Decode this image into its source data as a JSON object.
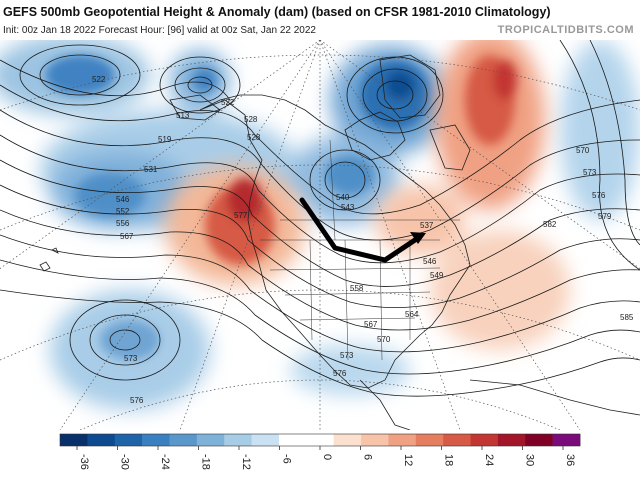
{
  "header": {
    "title": "GEFS 500mb Geopotential Height & Anomaly (dam) (based on CFSR 1981-2010 Climatology)",
    "subtitle": "Init: 00z Jan 18 2022   Forecast Hour: [96]   valid at 00z Sat, Jan 22 2022",
    "site": "TROPICALTIDBITS.COM"
  },
  "colors": {
    "neg": [
      "#08306b",
      "#0d4a8f",
      "#1f63a8",
      "#3a7fbf",
      "#5a98cc",
      "#7fb2d9",
      "#a6cce6",
      "#c9e1f2",
      "#ffffff"
    ],
    "pos": [
      "#ffffff",
      "#fbe0d0",
      "#f7c4aa",
      "#f0a183",
      "#e57d5f",
      "#d65a45",
      "#c23633",
      "#a3152a",
      "#800026",
      "#7a0b7a"
    ],
    "arrow": "#000000"
  },
  "contour_labels": [
    {
      "id": "c522a",
      "text": "522"
    },
    {
      "id": "c513",
      "text": "513"
    },
    {
      "id": "c519",
      "text": "519"
    },
    {
      "id": "c522b",
      "text": "522"
    },
    {
      "id": "c528a",
      "text": "528"
    },
    {
      "id": "c531",
      "text": "531"
    },
    {
      "id": "c546",
      "text": "546"
    },
    {
      "id": "c552",
      "text": "552"
    },
    {
      "id": "c556",
      "text": "556"
    },
    {
      "id": "c567a",
      "text": "567"
    },
    {
      "id": "c570a",
      "text": "570"
    },
    {
      "id": "c573a",
      "text": "573"
    },
    {
      "id": "c576a",
      "text": "576"
    },
    {
      "id": "c579",
      "text": "579"
    },
    {
      "id": "c582",
      "text": "582"
    },
    {
      "id": "c558",
      "text": "558"
    },
    {
      "id": "c564",
      "text": "564"
    },
    {
      "id": "c567b",
      "text": "567"
    },
    {
      "id": "c570b",
      "text": "570"
    },
    {
      "id": "c573b",
      "text": "573"
    },
    {
      "id": "c576b",
      "text": "576"
    },
    {
      "id": "c573c",
      "text": "573"
    },
    {
      "id": "c576c",
      "text": "576"
    },
    {
      "id": "c540",
      "text": "540"
    },
    {
      "id": "c543",
      "text": "543"
    },
    {
      "id": "c546b",
      "text": "546"
    },
    {
      "id": "c549",
      "text": "549"
    },
    {
      "id": "c537",
      "text": "537"
    },
    {
      "id": "c577",
      "text": "577"
    },
    {
      "id": "c528b",
      "text": "528"
    },
    {
      "id": "c585",
      "text": "585"
    }
  ],
  "colorbar": {
    "ticks": [
      "-36",
      "-30",
      "-24",
      "-18",
      "-12",
      "-6",
      "0",
      "6",
      "12",
      "18",
      "24",
      "30",
      "36"
    ]
  }
}
